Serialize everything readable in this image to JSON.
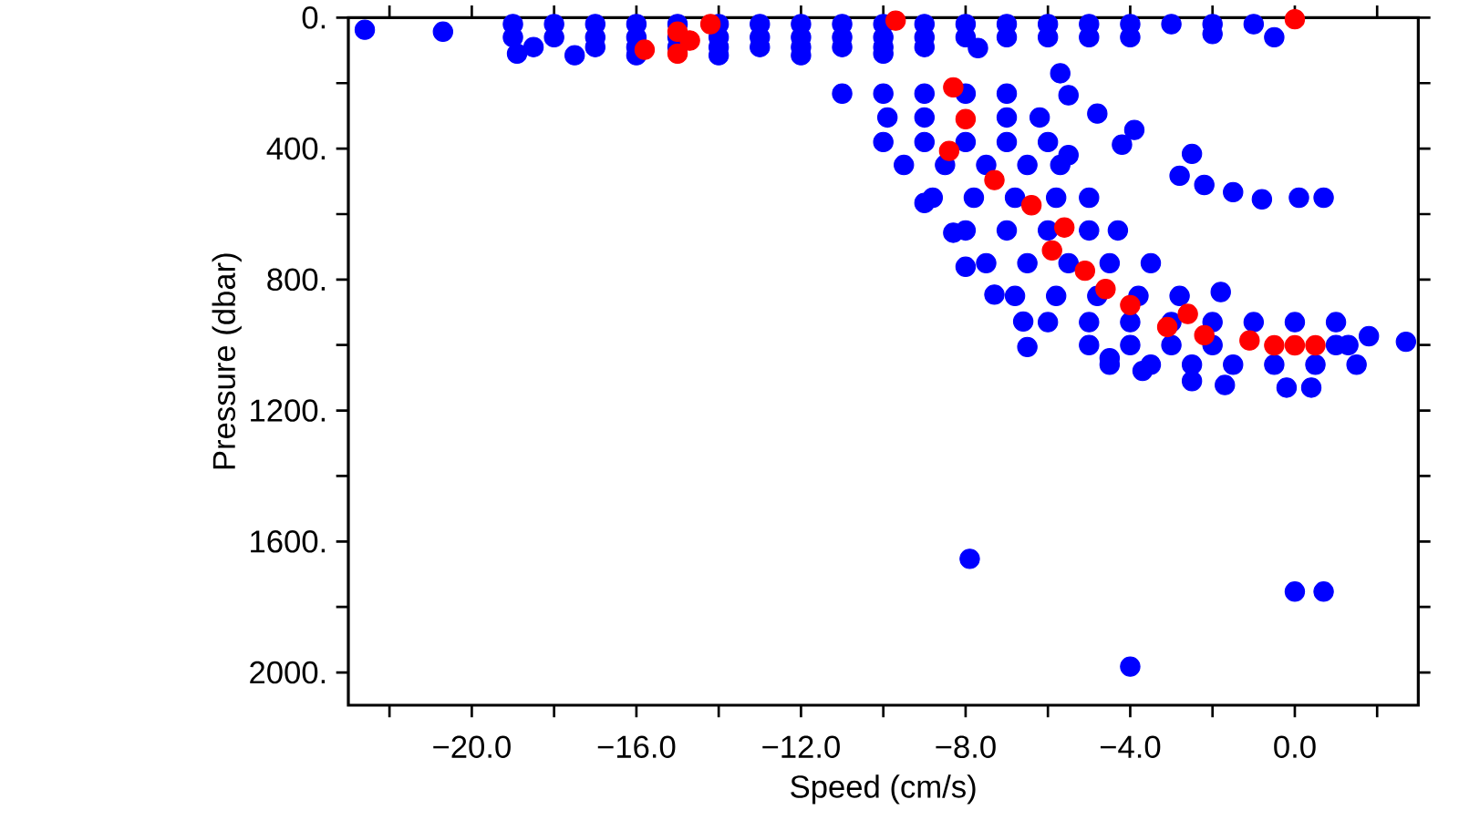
{
  "chart_data": {
    "type": "scatter",
    "xlabel": "Speed (cm/s)",
    "ylabel": "Pressure (dbar)",
    "xlim": [
      -23,
      3
    ],
    "ylim": [
      2100,
      0
    ],
    "xticks": [
      {
        "value": -22,
        "label": null
      },
      {
        "value": -20,
        "label": "−20.0"
      },
      {
        "value": -18,
        "label": null
      },
      {
        "value": -16,
        "label": "−16.0"
      },
      {
        "value": -14,
        "label": null
      },
      {
        "value": -12,
        "label": "−12.0"
      },
      {
        "value": -10,
        "label": null
      },
      {
        "value": -8,
        "label": "−8.0"
      },
      {
        "value": -6,
        "label": null
      },
      {
        "value": -4,
        "label": "−4.0"
      },
      {
        "value": -2,
        "label": null
      },
      {
        "value": 0,
        "label": "0.0"
      },
      {
        "value": 2,
        "label": null
      }
    ],
    "yticks": [
      {
        "value": 0,
        "label": "0."
      },
      {
        "value": 200,
        "label": null
      },
      {
        "value": 400,
        "label": "400."
      },
      {
        "value": 600,
        "label": null
      },
      {
        "value": 800,
        "label": "800."
      },
      {
        "value": 1000,
        "label": null
      },
      {
        "value": 1200,
        "label": "1200."
      },
      {
        "value": 1400,
        "label": null
      },
      {
        "value": 1600,
        "label": "1600."
      },
      {
        "value": 1800,
        "label": null
      },
      {
        "value": 2000,
        "label": "2000."
      }
    ],
    "series": [
      {
        "color": "#0000ff",
        "x": [
          -22.6,
          -20.7,
          -19,
          -18,
          -17,
          -16,
          -15,
          -14,
          -13,
          -12,
          -11,
          -10,
          -9,
          -8,
          -7,
          -6,
          -5,
          -4,
          -3,
          -2,
          -1,
          -0.5,
          -19,
          -18,
          -17,
          -16,
          -15,
          -14,
          -13,
          -12,
          -11,
          -10,
          -9,
          -8,
          -7,
          -6,
          -5,
          -4,
          -2,
          -18.5,
          -17,
          -16,
          -15,
          -14,
          -13,
          -12,
          -11,
          -10,
          -9,
          -7.7,
          -18.9,
          -17.5,
          -16,
          -14,
          -12,
          -10,
          -11,
          -10,
          -9,
          -8,
          -7,
          -5.7,
          -5.5,
          -9.9,
          -9,
          -8,
          -7,
          -6.2,
          -4.8,
          -3.9,
          -4.2,
          -10,
          -9,
          -8,
          -7,
          -6,
          -5.5,
          -9.5,
          -8.5,
          -7.5,
          -6.5,
          -5.7,
          -8.8,
          -7.8,
          -6.8,
          -5.8,
          -5.0,
          -9.0,
          -8,
          -7,
          -6,
          -5,
          -4.3,
          -8.3,
          -7.5,
          -6.5,
          -5.5,
          -4.5,
          -3.5,
          -8.0,
          -6.8,
          -5.8,
          -4.8,
          -3.8,
          -2.8,
          -7.3,
          -6,
          -5,
          -4,
          -3,
          -2,
          -1,
          0,
          1,
          -6.6,
          -5,
          -4,
          -3,
          -2,
          1,
          1.3,
          1.8,
          2.7,
          -6.5,
          -4.5,
          -3.5,
          -2.5,
          -1.5,
          -0.5,
          0.5,
          1.5,
          -4.5,
          -3.7,
          -2.5,
          -1.7,
          -0.2,
          0.4,
          -2.5,
          -2.8,
          -2.2,
          -1.5,
          -0.8,
          0.1,
          0.7,
          -1.8,
          -7.9,
          -4.0,
          0,
          0.7
        ],
        "values": [
          37,
          43,
          20,
          20,
          20,
          20,
          20,
          20,
          20,
          20,
          20,
          20,
          20,
          20,
          20,
          20,
          20,
          20,
          20,
          20,
          20,
          60,
          60,
          60,
          60,
          60,
          60,
          60,
          60,
          60,
          60,
          60,
          60,
          60,
          60,
          60,
          60,
          60,
          50,
          90,
          90,
          90,
          90,
          90,
          90,
          90,
          90,
          90,
          90,
          93,
          110,
          115,
          115,
          115,
          115,
          110,
          232,
          232,
          232,
          232,
          232,
          170,
          237,
          305,
          305,
          null,
          305,
          305,
          293,
          343,
          388,
          380,
          380,
          380,
          380,
          380,
          420,
          450,
          450,
          450,
          450,
          450,
          550,
          550,
          550,
          550,
          550,
          566,
          650,
          650,
          650,
          650,
          650,
          657,
          750,
          750,
          750,
          750,
          750,
          761,
          850,
          850,
          850,
          850,
          850,
          846,
          930,
          930,
          930,
          930,
          930,
          930,
          930,
          930,
          928,
          1000,
          1000,
          1000,
          1000,
          1000,
          1000,
          973,
          990,
          1006,
          1060,
          1060,
          1060,
          1060,
          1060,
          1060,
          1060,
          1040,
          1079,
          1110,
          1122,
          1130,
          1130,
          416,
          483,
          511,
          533,
          555,
          550,
          550,
          838,
          1653,
          1982,
          1753,
          1753
        ]
      },
      {
        "color": "#ff0000",
        "x": [
          -15.0,
          -14.2,
          -15.8,
          -15.0,
          -14.7,
          -9.7,
          0,
          -8.3,
          -8.0,
          -8.4,
          -7.3,
          -6.4,
          -5.6,
          -5.9,
          -5.1,
          -4.6,
          -4.0,
          -2.6,
          -3.1,
          -2.2,
          -1.1,
          -0.5,
          0,
          0.5
        ],
        "values": [
          43,
          20,
          98,
          110,
          70,
          9,
          5,
          213,
          310,
          407,
          496,
          573,
          641,
          711,
          773,
          829,
          878,
          905,
          945,
          970,
          986,
          1001,
          1001,
          1001
        ]
      }
    ]
  }
}
